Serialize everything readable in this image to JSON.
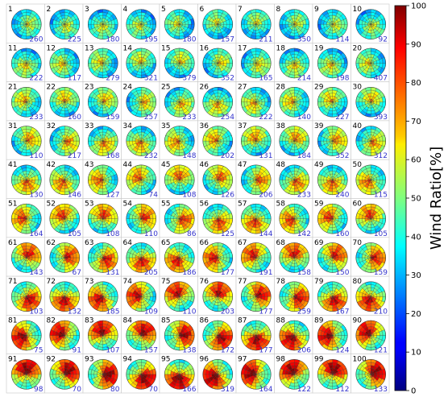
{
  "chart_data": {
    "type": "heatmap",
    "description_grid": "10 x 10 small multiples of polar wind-ratio maps",
    "colorbar": {
      "title": "Wind Ratio[%]",
      "min": 0,
      "max": 100,
      "ticks": [
        0,
        10,
        20,
        30,
        40,
        50,
        60,
        70,
        80,
        90,
        100
      ],
      "colormap": "jet"
    },
    "panels": [
      {
        "id": "1",
        "count": "260"
      },
      {
        "id": "2",
        "count": "225"
      },
      {
        "id": "3",
        "count": "180"
      },
      {
        "id": "4",
        "count": "195"
      },
      {
        "id": "5",
        "count": "180"
      },
      {
        "id": "6",
        "count": "157"
      },
      {
        "id": "7",
        "count": "211"
      },
      {
        "id": "8",
        "count": "350"
      },
      {
        "id": "9",
        "count": "114"
      },
      {
        "id": "10",
        "count": "92"
      },
      {
        "id": "11",
        "count": "222"
      },
      {
        "id": "12",
        "count": "117"
      },
      {
        "id": "13",
        "count": "279"
      },
      {
        "id": "14",
        "count": "321"
      },
      {
        "id": "15",
        "count": "379"
      },
      {
        "id": "16",
        "count": "352"
      },
      {
        "id": "17",
        "count": "165"
      },
      {
        "id": "18",
        "count": "214"
      },
      {
        "id": "19",
        "count": "198"
      },
      {
        "id": "20",
        "count": "407"
      },
      {
        "id": "21",
        "count": "233"
      },
      {
        "id": "22",
        "count": "160"
      },
      {
        "id": "23",
        "count": "159"
      },
      {
        "id": "24",
        "count": "257"
      },
      {
        "id": "25",
        "count": "233"
      },
      {
        "id": "26",
        "count": "254"
      },
      {
        "id": "27",
        "count": "222"
      },
      {
        "id": "28",
        "count": "140"
      },
      {
        "id": "29",
        "count": "227"
      },
      {
        "id": "30",
        "count": "393"
      },
      {
        "id": "31",
        "count": "110"
      },
      {
        "id": "32",
        "count": "217"
      },
      {
        "id": "33",
        "count": "168"
      },
      {
        "id": "34",
        "count": "232"
      },
      {
        "id": "35",
        "count": "148"
      },
      {
        "id": "36",
        "count": "202"
      },
      {
        "id": "37",
        "count": "131"
      },
      {
        "id": "38",
        "count": "184"
      },
      {
        "id": "39",
        "count": "352"
      },
      {
        "id": "40",
        "count": "312"
      },
      {
        "id": "41",
        "count": "130"
      },
      {
        "id": "42",
        "count": "146"
      },
      {
        "id": "43",
        "count": "127"
      },
      {
        "id": "44",
        "count": "74"
      },
      {
        "id": "45",
        "count": "108"
      },
      {
        "id": "46",
        "count": "126"
      },
      {
        "id": "47",
        "count": "206"
      },
      {
        "id": "48",
        "count": "233"
      },
      {
        "id": "49",
        "count": "240"
      },
      {
        "id": "50",
        "count": "115"
      },
      {
        "id": "51",
        "count": "164"
      },
      {
        "id": "52",
        "count": "105"
      },
      {
        "id": "53",
        "count": "108"
      },
      {
        "id": "54",
        "count": "110"
      },
      {
        "id": "55",
        "count": "86"
      },
      {
        "id": "56",
        "count": "125"
      },
      {
        "id": "57",
        "count": "144"
      },
      {
        "id": "58",
        "count": "142"
      },
      {
        "id": "59",
        "count": "160"
      },
      {
        "id": "60",
        "count": "105"
      },
      {
        "id": "61",
        "count": "143"
      },
      {
        "id": "62",
        "count": "67"
      },
      {
        "id": "63",
        "count": "131"
      },
      {
        "id": "64",
        "count": "205"
      },
      {
        "id": "65",
        "count": "186"
      },
      {
        "id": "66",
        "count": "177"
      },
      {
        "id": "67",
        "count": "191"
      },
      {
        "id": "68",
        "count": "158"
      },
      {
        "id": "69",
        "count": "150"
      },
      {
        "id": "70",
        "count": "159"
      },
      {
        "id": "71",
        "count": "103"
      },
      {
        "id": "72",
        "count": "132"
      },
      {
        "id": "73",
        "count": "185"
      },
      {
        "id": "74",
        "count": "109"
      },
      {
        "id": "75",
        "count": "110"
      },
      {
        "id": "76",
        "count": "203"
      },
      {
        "id": "77",
        "count": "177"
      },
      {
        "id": "78",
        "count": "259"
      },
      {
        "id": "79",
        "count": "167"
      },
      {
        "id": "80",
        "count": "210"
      },
      {
        "id": "81",
        "count": "75"
      },
      {
        "id": "82",
        "count": "91"
      },
      {
        "id": "83",
        "count": "107"
      },
      {
        "id": "84",
        "count": "157"
      },
      {
        "id": "85",
        "count": "138"
      },
      {
        "id": "86",
        "count": "172"
      },
      {
        "id": "87",
        "count": "177"
      },
      {
        "id": "88",
        "count": "206"
      },
      {
        "id": "89",
        "count": "124"
      },
      {
        "id": "90",
        "count": "121"
      },
      {
        "id": "91",
        "count": "98"
      },
      {
        "id": "92",
        "count": "70"
      },
      {
        "id": "93",
        "count": "80"
      },
      {
        "id": "94",
        "count": "70"
      },
      {
        "id": "95",
        "count": "166"
      },
      {
        "id": "96",
        "count": "319"
      },
      {
        "id": "97",
        "count": "164"
      },
      {
        "id": "98",
        "count": "122"
      },
      {
        "id": "99",
        "count": "112"
      },
      {
        "id": "100",
        "count": "133"
      }
    ]
  }
}
